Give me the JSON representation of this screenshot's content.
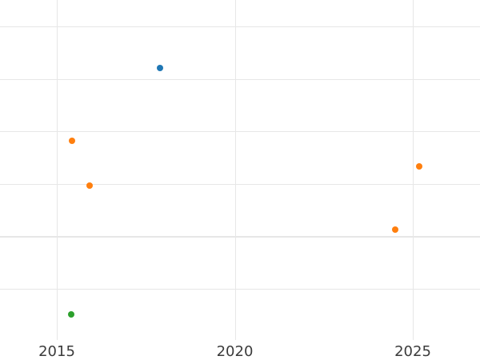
{
  "chart_data": {
    "type": "scatter",
    "title": "",
    "xlabel": "",
    "ylabel": "",
    "grid": true,
    "legend_position": "none",
    "background_color": "#ffffff",
    "gridline_color": "#e7e7e7",
    "tick_label_color": "#3b3b3b",
    "x_axis": {
      "ticks": [
        {
          "value": 2015,
          "label": "2015"
        },
        {
          "value": 2020,
          "label": "2020"
        },
        {
          "value": 2025,
          "label": "2025"
        }
      ],
      "xlim": [
        2013.4,
        2026.9
      ]
    },
    "y_axis": {
      "labels_visible": false,
      "units": "unlabeled-gridline-units-from-bottom",
      "gridline_units": [
        1,
        2,
        3,
        4,
        5,
        6
      ],
      "ylim": [
        0.02,
        6.5
      ]
    },
    "series": [
      {
        "name": "blue",
        "color": "#1f77b4",
        "marker": "circle",
        "points": [
          {
            "x": 2017.9,
            "y": 5.21
          }
        ]
      },
      {
        "name": "orange",
        "color": "#ff7f0e",
        "marker": "circle",
        "points": [
          {
            "x": 2015.43,
            "y": 3.82
          },
          {
            "x": 2015.92,
            "y": 2.96
          },
          {
            "x": 2024.51,
            "y": 2.13
          },
          {
            "x": 2025.18,
            "y": 3.33
          }
        ]
      },
      {
        "name": "green",
        "color": "#2ca02c",
        "marker": "circle",
        "points": [
          {
            "x": 2015.4,
            "y": 0.51
          }
        ]
      }
    ]
  }
}
